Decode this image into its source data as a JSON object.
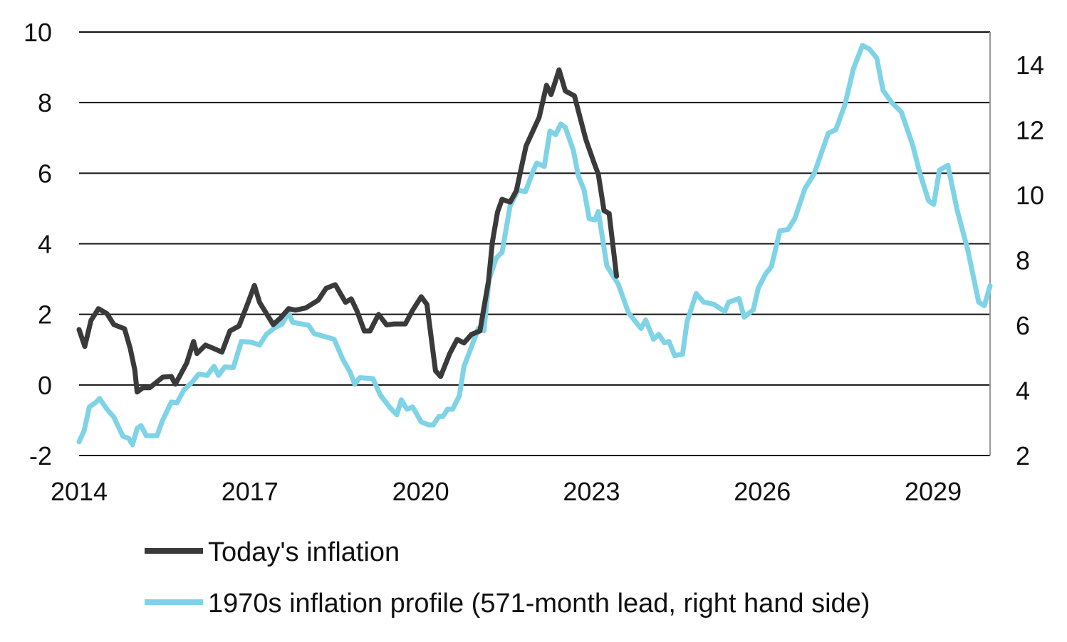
{
  "chart_data": {
    "type": "line",
    "title": "",
    "xlabel": "",
    "ylabel": "",
    "xlim": [
      2014,
      2030
    ],
    "ylim": [
      -2,
      10
    ],
    "ylim_right": [
      2,
      15
    ],
    "grid": true,
    "legend_position": "bottom",
    "x_ticks": [
      "2014",
      "2017",
      "2020",
      "2023",
      "2026",
      "2029"
    ],
    "x_tick_values": [
      2014,
      2017,
      2020,
      2023,
      2026,
      2029
    ],
    "y_ticks_left": [
      "10",
      "8",
      "6",
      "4",
      "2",
      "0",
      "-2"
    ],
    "y_tick_values_left": [
      10,
      8,
      6,
      4,
      2,
      0,
      -2
    ],
    "y_ticks_right": [
      "14",
      "12",
      "10",
      "8",
      "6",
      "4",
      "2"
    ],
    "y_tick_values_right": [
      14,
      12,
      10,
      8,
      6,
      4,
      2
    ],
    "series": [
      {
        "name": "Today's inflation",
        "axis": "left",
        "color": "#3a3a3a",
        "points": [
          [
            2014.0,
            1.57
          ],
          [
            2014.1,
            1.09
          ],
          [
            2014.21,
            1.83
          ],
          [
            2014.34,
            2.16
          ],
          [
            2014.49,
            2.02
          ],
          [
            2014.61,
            1.71
          ],
          [
            2014.8,
            1.59
          ],
          [
            2014.9,
            1.03
          ],
          [
            2014.98,
            0.42
          ],
          [
            2015.02,
            -0.2
          ],
          [
            2015.12,
            -0.08
          ],
          [
            2015.24,
            -0.08
          ],
          [
            2015.47,
            0.22
          ],
          [
            2015.62,
            0.24
          ],
          [
            2015.69,
            0.02
          ],
          [
            2015.89,
            0.62
          ],
          [
            2016.01,
            1.23
          ],
          [
            2016.07,
            0.89
          ],
          [
            2016.22,
            1.13
          ],
          [
            2016.37,
            1.03
          ],
          [
            2016.51,
            0.93
          ],
          [
            2016.65,
            1.53
          ],
          [
            2016.81,
            1.67
          ],
          [
            2016.97,
            2.34
          ],
          [
            2017.08,
            2.82
          ],
          [
            2017.17,
            2.34
          ],
          [
            2017.41,
            1.71
          ],
          [
            2017.54,
            1.9
          ],
          [
            2017.68,
            2.16
          ],
          [
            2017.8,
            2.12
          ],
          [
            2017.98,
            2.18
          ],
          [
            2018.2,
            2.4
          ],
          [
            2018.34,
            2.74
          ],
          [
            2018.5,
            2.84
          ],
          [
            2018.68,
            2.34
          ],
          [
            2018.78,
            2.44
          ],
          [
            2018.88,
            2.1
          ],
          [
            2019.01,
            1.53
          ],
          [
            2019.11,
            1.53
          ],
          [
            2019.26,
            2.0
          ],
          [
            2019.4,
            1.7
          ],
          [
            2019.53,
            1.73
          ],
          [
            2019.73,
            1.73
          ],
          [
            2019.86,
            2.12
          ],
          [
            2020.01,
            2.5
          ],
          [
            2020.11,
            2.28
          ],
          [
            2020.26,
            0.4
          ],
          [
            2020.35,
            0.24
          ],
          [
            2020.51,
            0.89
          ],
          [
            2020.64,
            1.29
          ],
          [
            2020.76,
            1.19
          ],
          [
            2020.89,
            1.43
          ],
          [
            2021.04,
            1.53
          ],
          [
            2021.19,
            2.94
          ],
          [
            2021.26,
            4.05
          ],
          [
            2021.35,
            4.9
          ],
          [
            2021.43,
            5.26
          ],
          [
            2021.57,
            5.18
          ],
          [
            2021.68,
            5.5
          ],
          [
            2021.85,
            6.77
          ],
          [
            2022.08,
            7.58
          ],
          [
            2022.21,
            8.49
          ],
          [
            2022.29,
            8.23
          ],
          [
            2022.43,
            8.93
          ],
          [
            2022.54,
            8.33
          ],
          [
            2022.7,
            8.19
          ],
          [
            2022.9,
            6.96
          ],
          [
            2023.05,
            6.27
          ],
          [
            2023.12,
            5.97
          ],
          [
            2023.22,
            4.94
          ],
          [
            2023.31,
            4.86
          ],
          [
            2023.44,
            3.08
          ]
        ]
      },
      {
        "name": "1970s inflation profile (571-month lead, right hand side)",
        "axis": "right",
        "color": "#7fd3e6",
        "points": [
          [
            2014.0,
            2.42
          ],
          [
            2014.09,
            2.77
          ],
          [
            2014.18,
            3.49
          ],
          [
            2014.3,
            3.64
          ],
          [
            2014.36,
            3.75
          ],
          [
            2014.49,
            3.42
          ],
          [
            2014.61,
            3.18
          ],
          [
            2014.77,
            2.59
          ],
          [
            2014.87,
            2.53
          ],
          [
            2014.94,
            2.33
          ],
          [
            2015.02,
            2.83
          ],
          [
            2015.09,
            2.92
          ],
          [
            2015.18,
            2.61
          ],
          [
            2015.37,
            2.61
          ],
          [
            2015.46,
            3.05
          ],
          [
            2015.62,
            3.64
          ],
          [
            2015.72,
            3.62
          ],
          [
            2015.84,
            4.01
          ],
          [
            2015.99,
            4.26
          ],
          [
            2016.1,
            4.5
          ],
          [
            2016.25,
            4.46
          ],
          [
            2016.37,
            4.74
          ],
          [
            2016.45,
            4.46
          ],
          [
            2016.56,
            4.72
          ],
          [
            2016.71,
            4.7
          ],
          [
            2016.85,
            5.5
          ],
          [
            2017.02,
            5.48
          ],
          [
            2017.17,
            5.39
          ],
          [
            2017.29,
            5.72
          ],
          [
            2017.45,
            5.94
          ],
          [
            2017.56,
            6.03
          ],
          [
            2017.68,
            6.38
          ],
          [
            2017.75,
            6.09
          ],
          [
            2018.03,
            6.0
          ],
          [
            2018.13,
            5.74
          ],
          [
            2018.48,
            5.57
          ],
          [
            2018.63,
            4.96
          ],
          [
            2018.76,
            4.56
          ],
          [
            2018.84,
            4.19
          ],
          [
            2018.93,
            4.39
          ],
          [
            2019.16,
            4.36
          ],
          [
            2019.29,
            3.86
          ],
          [
            2019.45,
            3.49
          ],
          [
            2019.58,
            3.25
          ],
          [
            2019.66,
            3.71
          ],
          [
            2019.76,
            3.42
          ],
          [
            2019.86,
            3.49
          ],
          [
            2020.01,
            3.03
          ],
          [
            2020.14,
            2.94
          ],
          [
            2020.22,
            2.94
          ],
          [
            2020.32,
            3.2
          ],
          [
            2020.39,
            3.2
          ],
          [
            2020.47,
            3.42
          ],
          [
            2020.56,
            3.42
          ],
          [
            2020.68,
            3.84
          ],
          [
            2020.76,
            4.74
          ],
          [
            2020.89,
            5.33
          ],
          [
            2021.01,
            5.9
          ],
          [
            2021.11,
            5.83
          ],
          [
            2021.2,
            7.41
          ],
          [
            2021.33,
            8.07
          ],
          [
            2021.43,
            8.24
          ],
          [
            2021.57,
            9.66
          ],
          [
            2021.71,
            10.15
          ],
          [
            2021.84,
            10.1
          ],
          [
            2021.98,
            10.76
          ],
          [
            2022.04,
            10.98
          ],
          [
            2022.17,
            10.87
          ],
          [
            2022.27,
            11.96
          ],
          [
            2022.37,
            11.85
          ],
          [
            2022.46,
            12.18
          ],
          [
            2022.54,
            12.07
          ],
          [
            2022.68,
            11.37
          ],
          [
            2022.77,
            10.58
          ],
          [
            2022.87,
            10.15
          ],
          [
            2022.96,
            9.27
          ],
          [
            2023.06,
            9.23
          ],
          [
            2023.12,
            9.49
          ],
          [
            2023.27,
            7.82
          ],
          [
            2023.47,
            7.26
          ],
          [
            2023.65,
            6.38
          ],
          [
            2023.87,
            5.9
          ],
          [
            2023.95,
            6.16
          ],
          [
            2024.09,
            5.57
          ],
          [
            2024.18,
            5.72
          ],
          [
            2024.28,
            5.46
          ],
          [
            2024.36,
            5.5
          ],
          [
            2024.46,
            5.07
          ],
          [
            2024.6,
            5.11
          ],
          [
            2024.68,
            6.12
          ],
          [
            2024.84,
            6.97
          ],
          [
            2024.97,
            6.71
          ],
          [
            2025.15,
            6.64
          ],
          [
            2025.34,
            6.42
          ],
          [
            2025.41,
            6.71
          ],
          [
            2025.59,
            6.82
          ],
          [
            2025.68,
            6.25
          ],
          [
            2025.84,
            6.47
          ],
          [
            2025.93,
            7.15
          ],
          [
            2026.06,
            7.58
          ],
          [
            2026.16,
            7.8
          ],
          [
            2026.31,
            8.9
          ],
          [
            2026.45,
            8.94
          ],
          [
            2026.57,
            9.27
          ],
          [
            2026.75,
            10.2
          ],
          [
            2026.91,
            10.65
          ],
          [
            2027.16,
            11.9
          ],
          [
            2027.29,
            12.0
          ],
          [
            2027.45,
            12.77
          ],
          [
            2027.6,
            13.87
          ],
          [
            2027.76,
            14.59
          ],
          [
            2027.88,
            14.48
          ],
          [
            2028.01,
            14.2
          ],
          [
            2028.12,
            13.21
          ],
          [
            2028.27,
            12.84
          ],
          [
            2028.44,
            12.55
          ],
          [
            2028.64,
            11.53
          ],
          [
            2028.77,
            10.65
          ],
          [
            2028.92,
            9.82
          ],
          [
            2029.01,
            9.71
          ],
          [
            2029.11,
            10.76
          ],
          [
            2029.26,
            10.91
          ],
          [
            2029.42,
            9.55
          ],
          [
            2029.61,
            8.3
          ],
          [
            2029.8,
            6.71
          ],
          [
            2029.9,
            6.6
          ],
          [
            2030.0,
            7.21
          ]
        ]
      }
    ]
  }
}
